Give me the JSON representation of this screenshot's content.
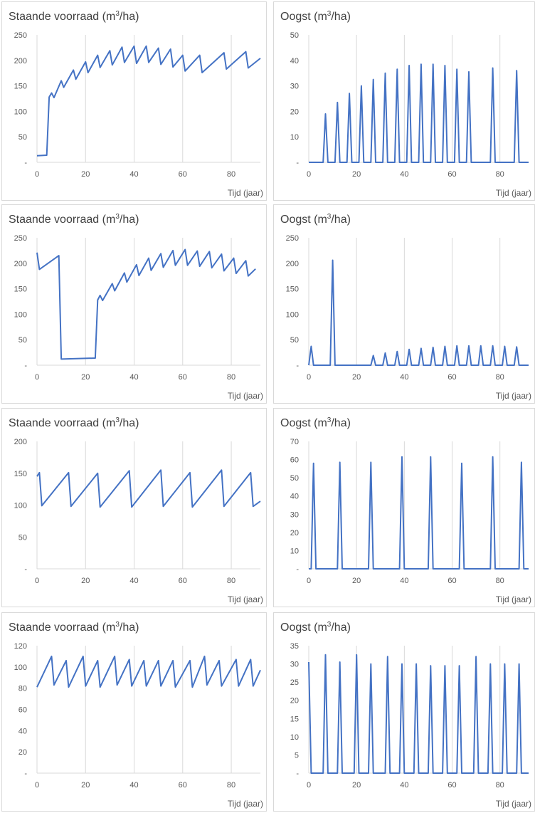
{
  "colors": {
    "series": "#4472c4",
    "grid": "#d9d9d9",
    "text": "#595959",
    "border": "#d9d9d9"
  },
  "chart_data": [
    {
      "type": "line",
      "title_main": "Staande voorraad (m",
      "title_sup": "3",
      "title_tail": "/ha)",
      "xlabel": "Tijd (jaar)",
      "ylabel": "",
      "xlim": [
        0,
        92
      ],
      "xticks": [
        0,
        20,
        40,
        60,
        80
      ],
      "ylim": [
        0,
        250
      ],
      "yticks": [
        0,
        50,
        100,
        150,
        200,
        250
      ],
      "ytick_labels": [
        "-",
        "50",
        "100",
        "150",
        "200",
        "250"
      ],
      "grid": "vertical",
      "series": [
        {
          "x": [
            0,
            4,
            5,
            6,
            7,
            10,
            11,
            15,
            16,
            20,
            21,
            25,
            26,
            30,
            31,
            35,
            36,
            40,
            41,
            45,
            46,
            50,
            51,
            55,
            56,
            60,
            61,
            67,
            68,
            77,
            78,
            86,
            87,
            92
          ],
          "y": [
            13,
            14,
            128,
            136,
            127,
            160,
            147,
            181,
            163,
            197,
            176,
            210,
            186,
            219,
            191,
            226,
            196,
            228,
            194,
            228,
            196,
            224,
            192,
            222,
            187,
            210,
            179,
            210,
            176,
            215,
            183,
            217,
            185,
            204
          ]
        }
      ]
    },
    {
      "type": "line",
      "title_main": "Oogst (m",
      "title_sup": "3",
      "title_tail": "/ha)",
      "xlabel": "Tijd (jaar)",
      "ylabel": "",
      "xlim": [
        0,
        92
      ],
      "xticks": [
        0,
        20,
        40,
        60,
        80
      ],
      "ylim": [
        0,
        50
      ],
      "yticks": [
        0,
        10,
        20,
        30,
        40,
        50
      ],
      "ytick_labels": [
        "-",
        "10",
        "20",
        "30",
        "40",
        "50"
      ],
      "grid": "vertical",
      "series": [
        {
          "x": [
            0,
            6,
            7,
            8,
            11,
            12,
            13,
            16,
            17,
            18,
            21,
            22,
            23,
            26,
            27,
            28,
            31,
            32,
            33,
            36,
            37,
            38,
            41,
            42,
            43,
            46,
            47,
            48,
            51,
            52,
            53,
            56,
            57,
            58,
            61,
            62,
            63,
            66,
            67,
            68,
            76,
            77,
            78,
            86,
            87,
            88,
            92
          ],
          "y": [
            0,
            0,
            19,
            0,
            0,
            23.5,
            0,
            0,
            27,
            0,
            0,
            30,
            0,
            0,
            32.5,
            0,
            0,
            35,
            0,
            0,
            36.5,
            0,
            0,
            38,
            0,
            0,
            38.5,
            0,
            0,
            38.5,
            0,
            0,
            38,
            0,
            0,
            36.5,
            0,
            0,
            35.5,
            0,
            0,
            37,
            0,
            0,
            36,
            0,
            0
          ]
        }
      ]
    },
    {
      "type": "line",
      "title_main": "Staande voorraad (m",
      "title_sup": "3",
      "title_tail": "/ha)",
      "xlabel": "Tijd (jaar)",
      "ylabel": "",
      "xlim": [
        0,
        92
      ],
      "xticks": [
        0,
        20,
        40,
        60,
        80
      ],
      "ylim": [
        0,
        250
      ],
      "yticks": [
        0,
        50,
        100,
        150,
        200,
        250
      ],
      "ytick_labels": [
        "-",
        "50",
        "100",
        "150",
        "200",
        "250"
      ],
      "grid": "vertical",
      "series": [
        {
          "x": [
            0,
            1,
            9,
            10,
            24,
            25,
            26,
            27,
            31,
            32,
            36,
            37,
            41,
            42,
            46,
            47,
            51,
            52,
            56,
            57,
            61,
            62,
            66,
            67,
            71,
            72,
            76,
            77,
            81,
            82,
            86,
            87,
            90
          ],
          "y": [
            221,
            188,
            215,
            12,
            14,
            128,
            137,
            127,
            160,
            146,
            181,
            163,
            197,
            176,
            210,
            186,
            219,
            192,
            225,
            196,
            227,
            196,
            224,
            194,
            223,
            191,
            218,
            185,
            210,
            180,
            205,
            175,
            189
          ]
        }
      ]
    },
    {
      "type": "line",
      "title_main": "Oogst (m",
      "title_sup": "3",
      "title_tail": "/ha)",
      "xlabel": "Tijd (jaar)",
      "ylabel": "",
      "xlim": [
        0,
        92
      ],
      "xticks": [
        0,
        20,
        40,
        60,
        80
      ],
      "ylim": [
        0,
        250
      ],
      "yticks": [
        0,
        50,
        100,
        150,
        200,
        250
      ],
      "ytick_labels": [
        "-",
        "50",
        "100",
        "150",
        "200",
        "250"
      ],
      "grid": "vertical",
      "series": [
        {
          "x": [
            0,
            1,
            2,
            9,
            10,
            11,
            26,
            27,
            28,
            31,
            32,
            33,
            36,
            37,
            38,
            41,
            42,
            43,
            46,
            47,
            48,
            51,
            52,
            53,
            56,
            57,
            58,
            61,
            62,
            63,
            66,
            67,
            68,
            71,
            72,
            73,
            76,
            77,
            78,
            81,
            82,
            83,
            86,
            87,
            88,
            92
          ],
          "y": [
            0,
            37,
            0,
            0,
            206,
            0,
            0,
            19,
            0,
            0,
            24,
            0,
            0,
            27,
            0,
            0,
            31,
            0,
            0,
            33,
            0,
            0,
            35,
            0,
            0,
            37,
            0,
            0,
            38,
            0,
            0,
            38,
            0,
            0,
            38,
            0,
            0,
            38,
            0,
            0,
            37,
            0,
            0,
            36,
            0,
            0
          ]
        }
      ]
    },
    {
      "type": "line",
      "title_main": "Staande voorraad (m",
      "title_sup": "3",
      "title_tail": "/ha)",
      "xlabel": "Tijd (jaar)",
      "ylabel": "",
      "xlim": [
        0,
        92
      ],
      "xticks": [
        0,
        20,
        40,
        60,
        80
      ],
      "ylim": [
        0,
        200
      ],
      "yticks": [
        0,
        50,
        100,
        150,
        200
      ],
      "ytick_labels": [
        "-",
        "50",
        "100",
        "150",
        "200"
      ],
      "grid": "vertical",
      "series": [
        {
          "x": [
            0,
            1,
            2,
            13,
            14,
            25,
            26,
            38,
            39,
            51,
            52,
            63,
            64,
            76,
            77,
            88,
            89,
            92
          ],
          "y": [
            145,
            151,
            99,
            151,
            98,
            150,
            97,
            154,
            97,
            155,
            98,
            151,
            97,
            155,
            98,
            151,
            98,
            106
          ]
        }
      ]
    },
    {
      "type": "line",
      "title_main": "Oogst (m",
      "title_sup": "3",
      "title_tail": "/ha)",
      "xlabel": "Tijd (jaar)",
      "ylabel": "",
      "xlim": [
        0,
        92
      ],
      "xticks": [
        0,
        20,
        40,
        60,
        80
      ],
      "ylim": [
        0,
        70
      ],
      "yticks": [
        0,
        10,
        20,
        30,
        40,
        50,
        60,
        70
      ],
      "ytick_labels": [
        "-",
        "10",
        "20",
        "30",
        "40",
        "50",
        "60",
        "70"
      ],
      "grid": "vertical",
      "series": [
        {
          "x": [
            0,
            1,
            2,
            3,
            12,
            13,
            14,
            25,
            26,
            27,
            38,
            39,
            40,
            50,
            51,
            52,
            63,
            64,
            65,
            76,
            77,
            78,
            88,
            89,
            90,
            92
          ],
          "y": [
            0,
            0,
            58,
            0,
            0,
            58.5,
            0,
            0,
            58.5,
            0,
            0,
            61.5,
            0,
            0,
            61.5,
            0,
            0,
            58,
            0,
            0,
            61.5,
            0,
            0,
            58.5,
            0,
            0
          ]
        }
      ]
    },
    {
      "type": "line",
      "title_main": "Staande voorraad (m",
      "title_sup": "3",
      "title_tail": "/ha)",
      "xlabel": "Tijd (jaar)",
      "ylabel": "",
      "xlim": [
        0,
        92
      ],
      "xticks": [
        0,
        20,
        40,
        60,
        80
      ],
      "ylim": [
        0,
        120
      ],
      "yticks": [
        0,
        20,
        40,
        60,
        80,
        100,
        120
      ],
      "ytick_labels": [
        "-",
        "20",
        "40",
        "60",
        "80",
        "100",
        "120"
      ],
      "grid": "vertical",
      "series": [
        {
          "x": [
            0,
            6,
            7,
            12,
            13,
            19,
            20,
            25,
            26,
            32,
            33,
            38,
            39,
            44,
            45,
            50,
            51,
            56,
            57,
            63,
            64,
            69,
            70,
            75,
            76,
            82,
            83,
            88,
            89,
            92
          ],
          "y": [
            81,
            110,
            83,
            106,
            81,
            110,
            82,
            106,
            81,
            110,
            83,
            107,
            82,
            106,
            82,
            106,
            82,
            106,
            81,
            106,
            81,
            110,
            83,
            106,
            82,
            107,
            82,
            107,
            82,
            97
          ]
        }
      ]
    },
    {
      "type": "line",
      "title_main": "Oogst (m",
      "title_sup": "3",
      "title_tail": "/ha)",
      "xlabel": "Tijd (jaar)",
      "ylabel": "",
      "xlim": [
        0,
        92
      ],
      "xticks": [
        0,
        20,
        40,
        60,
        80
      ],
      "ylim": [
        0,
        35
      ],
      "yticks": [
        0,
        5,
        10,
        15,
        20,
        25,
        30,
        35
      ],
      "ytick_labels": [
        "-",
        "5",
        "10",
        "15",
        "20",
        "25",
        "30",
        "35"
      ],
      "grid": "vertical",
      "series": [
        {
          "x": [
            0,
            1,
            6,
            7,
            8,
            12,
            13,
            14,
            19,
            20,
            21,
            25,
            26,
            27,
            32,
            33,
            34,
            38,
            39,
            40,
            44,
            45,
            46,
            50,
            51,
            52,
            56,
            57,
            58,
            62,
            63,
            64,
            69,
            70,
            71,
            75,
            76,
            77,
            81,
            82,
            83,
            87,
            88,
            89,
            92
          ],
          "y": [
            30.5,
            0,
            0,
            32.5,
            0,
            0,
            30.5,
            0,
            0,
            32.5,
            0,
            0,
            30,
            0,
            0,
            32,
            0,
            0,
            30,
            0,
            0,
            30,
            0,
            0,
            29.5,
            0,
            0,
            29.5,
            0,
            0,
            29.5,
            0,
            0,
            32,
            0,
            0,
            30,
            0,
            0,
            30,
            0,
            0,
            30,
            0,
            0
          ]
        }
      ]
    }
  ]
}
